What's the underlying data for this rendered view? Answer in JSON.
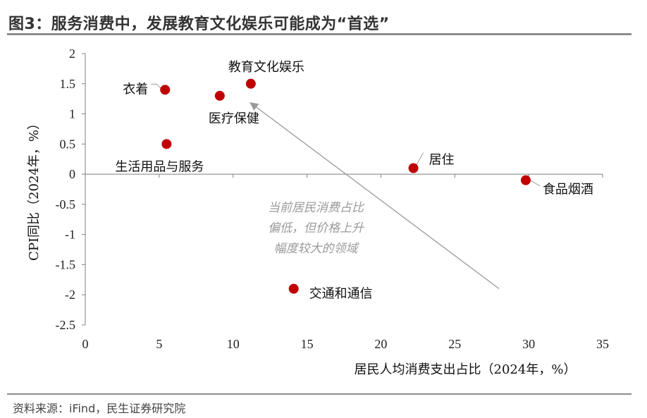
{
  "header": {
    "title": "图3：服务消费中，发展教育文化娱乐可能成为“首选”"
  },
  "footer": {
    "source": "资料来源：iFind，民生证券研究院"
  },
  "chart_data": {
    "type": "scatter",
    "xlabel": "居民人均消费支出占比（2024年，%）",
    "ylabel": "CPI同比（2024年，%）",
    "xlim": [
      0,
      35
    ],
    "ylim": [
      -2.5,
      2
    ],
    "xticks": [
      0,
      5,
      10,
      15,
      20,
      25,
      30,
      35
    ],
    "yticks": [
      2,
      1.5,
      1,
      0.5,
      0,
      -0.5,
      -1,
      -1.5,
      -2,
      -2.5
    ],
    "grid": false,
    "marker_color": "#c00000",
    "points": [
      {
        "label": "衣着",
        "x": 5.4,
        "y": 1.4
      },
      {
        "label": "医疗保健",
        "x": 9.1,
        "y": 1.3
      },
      {
        "label": "教育文化娱乐",
        "x": 11.2,
        "y": 1.5
      },
      {
        "label": "生活用品与服务",
        "x": 5.5,
        "y": 0.5
      },
      {
        "label": "居住",
        "x": 22.2,
        "y": 0.1
      },
      {
        "label": "食品烟酒",
        "x": 29.8,
        "y": -0.1
      },
      {
        "label": "交通和通信",
        "x": 14.1,
        "y": -1.9
      }
    ],
    "annotation": {
      "lines": [
        "当前居民消费占比",
        "偏低，但价格上升",
        "幅度较大的领域"
      ],
      "arrow_from": {
        "x": 28.0,
        "y": -1.9
      },
      "arrow_to": {
        "x": 11.2,
        "y": 1.18
      },
      "color": "#9a9a9a"
    }
  }
}
